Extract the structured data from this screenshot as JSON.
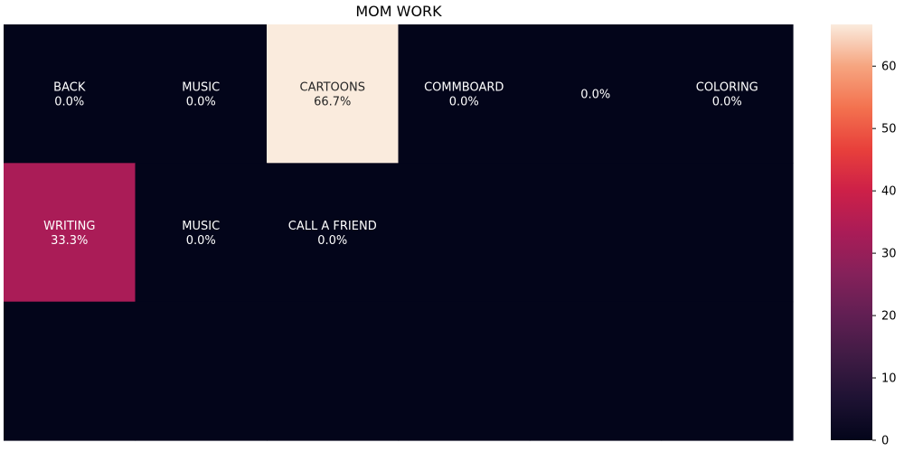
{
  "chart_data": {
    "type": "heatmap",
    "title": "MOM WORK",
    "rows": 3,
    "cols": 6,
    "cells": [
      [
        {
          "label": "BACK",
          "value": 0.0,
          "text": "0.0%"
        },
        {
          "label": "MUSIC",
          "value": 0.0,
          "text": "0.0%"
        },
        {
          "label": "CARTOONS",
          "value": 66.7,
          "text": "66.7%"
        },
        {
          "label": "COMMBOARD",
          "value": 0.0,
          "text": "0.0%"
        },
        {
          "label": "",
          "value": 0.0,
          "text": "0.0%"
        },
        {
          "label": "COLORING",
          "value": 0.0,
          "text": "0.0%"
        }
      ],
      [
        {
          "label": "WRITING",
          "value": 33.3,
          "text": "33.3%"
        },
        {
          "label": "MUSIC",
          "value": 0.0,
          "text": "0.0%"
        },
        {
          "label": "CALL A FRIEND",
          "value": 0.0,
          "text": "0.0%"
        },
        {
          "label": "",
          "value": 0.0,
          "text": ""
        },
        {
          "label": "",
          "value": 0.0,
          "text": ""
        },
        {
          "label": "",
          "value": 0.0,
          "text": ""
        }
      ],
      [
        {
          "label": "",
          "value": 0.0,
          "text": ""
        },
        {
          "label": "",
          "value": 0.0,
          "text": ""
        },
        {
          "label": "",
          "value": 0.0,
          "text": ""
        },
        {
          "label": "",
          "value": 0.0,
          "text": ""
        },
        {
          "label": "",
          "value": 0.0,
          "text": ""
        },
        {
          "label": "",
          "value": 0.0,
          "text": ""
        }
      ]
    ],
    "colorbar": {
      "range": [
        0,
        66.7
      ],
      "ticks": [
        0,
        10,
        20,
        30,
        40,
        50,
        60
      ],
      "colormap": "rocket"
    },
    "grid": false,
    "axes_visible": false
  }
}
